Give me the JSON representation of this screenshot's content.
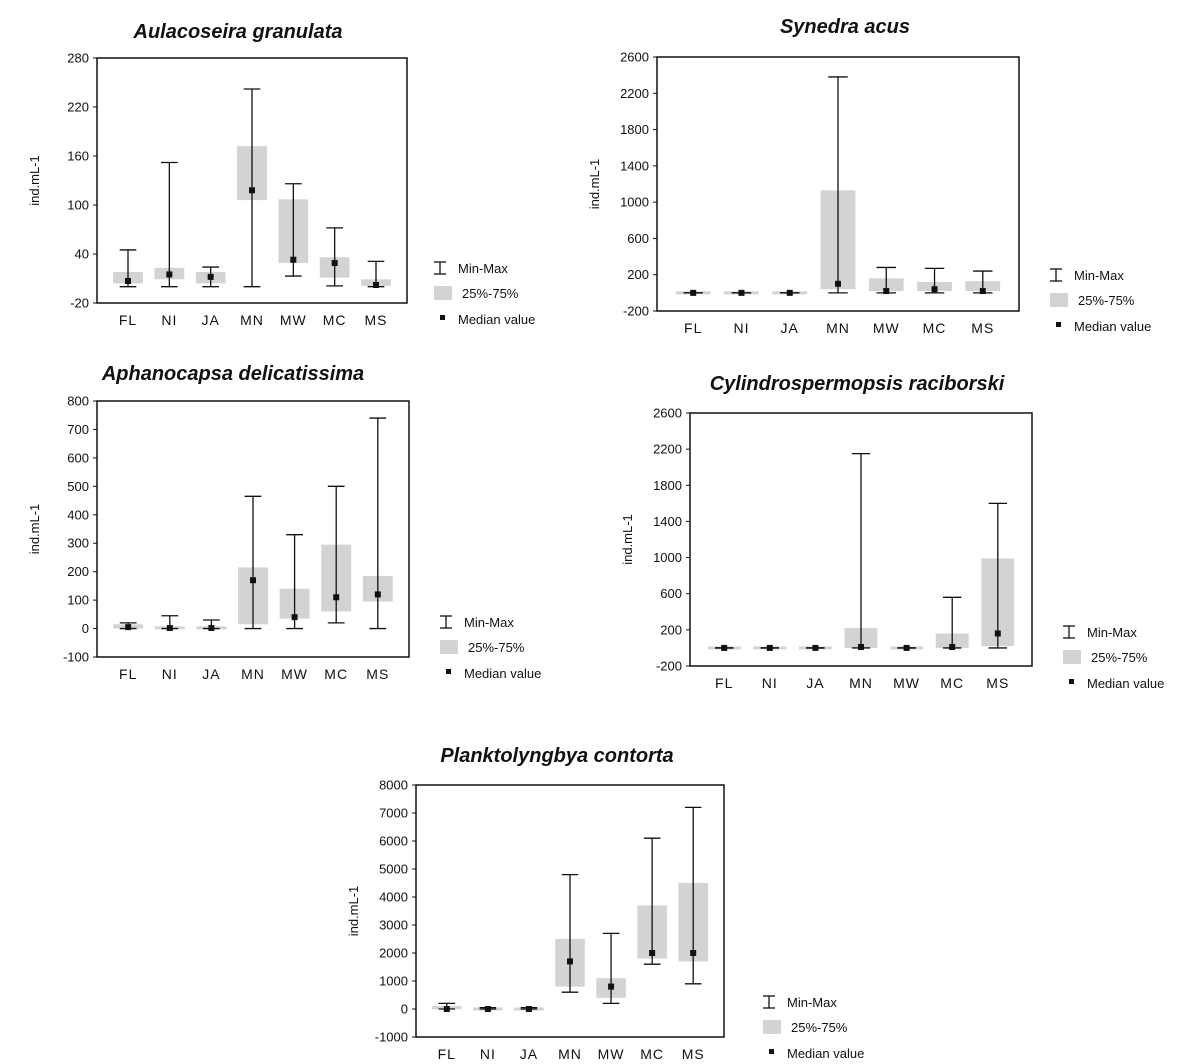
{
  "figure": {
    "legend": {
      "minmax": "Min-Max",
      "iqr": "25%-75%",
      "median": "Median value"
    },
    "colors": {
      "box": "#d3d3d3",
      "line": "#111111",
      "frame": "#111111"
    }
  },
  "chart_data": [
    {
      "type": "boxplot",
      "title": "Aulacoseira granulata",
      "ylabel": "ind.mL-1",
      "ylim": [
        -20,
        280
      ],
      "yticks": [
        -20,
        40,
        100,
        160,
        220,
        280
      ],
      "categories": [
        "FL",
        "NI",
        "JA",
        "MN",
        "MW",
        "MC",
        "MS"
      ],
      "boxes": [
        {
          "min": 0,
          "q1": 4,
          "median": 7,
          "q3": 18,
          "max": 45
        },
        {
          "min": 0,
          "q1": 9,
          "median": 15,
          "q3": 23,
          "max": 152
        },
        {
          "min": 0,
          "q1": 4,
          "median": 12,
          "q3": 18,
          "max": 24
        },
        {
          "min": 0,
          "q1": 106,
          "median": 118,
          "q3": 172,
          "max": 242
        },
        {
          "min": 13,
          "q1": 29,
          "median": 33,
          "q3": 107,
          "max": 126
        },
        {
          "min": 1,
          "q1": 11,
          "median": 29,
          "q3": 36,
          "max": 72
        },
        {
          "min": 0,
          "q1": 1,
          "median": 2,
          "q3": 9,
          "max": 31
        }
      ]
    },
    {
      "type": "boxplot",
      "title": "Synedra acus",
      "ylabel": "ind.mL-1",
      "ylim": [
        -200,
        2600
      ],
      "yticks": [
        -200,
        200,
        600,
        1000,
        1400,
        1800,
        2200,
        2600
      ],
      "categories": [
        "FL",
        "NI",
        "JA",
        "MN",
        "MW",
        "MC",
        "MS"
      ],
      "boxes": [
        {
          "min": 0,
          "q1": 0,
          "median": 0,
          "q3": 0,
          "max": 0
        },
        {
          "min": 0,
          "q1": 0,
          "median": 0,
          "q3": 0,
          "max": 0
        },
        {
          "min": 0,
          "q1": 0,
          "median": 0,
          "q3": 0,
          "max": 0
        },
        {
          "min": 0,
          "q1": 40,
          "median": 100,
          "q3": 1130,
          "max": 2380
        },
        {
          "min": 0,
          "q1": 20,
          "median": 20,
          "q3": 160,
          "max": 280
        },
        {
          "min": 0,
          "q1": 20,
          "median": 40,
          "q3": 120,
          "max": 270
        },
        {
          "min": 0,
          "q1": 20,
          "median": 20,
          "q3": 130,
          "max": 240
        }
      ]
    },
    {
      "type": "boxplot",
      "title": "Aphanocapsa delicatissima",
      "ylabel": "ind.mL-1",
      "ylim": [
        -100,
        800
      ],
      "yticks": [
        -100,
        0,
        100,
        200,
        300,
        400,
        500,
        600,
        700,
        800
      ],
      "categories": [
        "FL",
        "NI",
        "JA",
        "MN",
        "MW",
        "MC",
        "MS"
      ],
      "boxes": [
        {
          "min": 0,
          "q1": 0,
          "median": 5,
          "q3": 15,
          "max": 20
        },
        {
          "min": 0,
          "q1": 0,
          "median": 2,
          "q3": 5,
          "max": 45
        },
        {
          "min": 0,
          "q1": 0,
          "median": 2,
          "q3": 5,
          "max": 30
        },
        {
          "min": 0,
          "q1": 15,
          "median": 170,
          "q3": 215,
          "max": 465
        },
        {
          "min": 0,
          "q1": 35,
          "median": 40,
          "q3": 140,
          "max": 330
        },
        {
          "min": 20,
          "q1": 60,
          "median": 110,
          "q3": 295,
          "max": 500
        },
        {
          "min": 0,
          "q1": 95,
          "median": 120,
          "q3": 185,
          "max": 740
        }
      ]
    },
    {
      "type": "boxplot",
      "title": "Cylindrospermopsis raciborski",
      "ylabel": "ind.mL-1",
      "ylim": [
        -200,
        2600
      ],
      "yticks": [
        -200,
        200,
        600,
        1000,
        1400,
        1800,
        2200,
        2600
      ],
      "categories": [
        "FL",
        "NI",
        "JA",
        "MN",
        "MW",
        "MC",
        "MS"
      ],
      "boxes": [
        {
          "min": 0,
          "q1": 0,
          "median": 0,
          "q3": 0,
          "max": 0
        },
        {
          "min": 0,
          "q1": 0,
          "median": 0,
          "q3": 0,
          "max": 0
        },
        {
          "min": 0,
          "q1": 0,
          "median": 0,
          "q3": 0,
          "max": 0
        },
        {
          "min": 0,
          "q1": 0,
          "median": 10,
          "q3": 220,
          "max": 2150
        },
        {
          "min": 0,
          "q1": 0,
          "median": 0,
          "q3": 0,
          "max": 0
        },
        {
          "min": 0,
          "q1": 0,
          "median": 10,
          "q3": 160,
          "max": 560
        },
        {
          "min": 0,
          "q1": 20,
          "median": 160,
          "q3": 990,
          "max": 1600
        }
      ]
    },
    {
      "type": "boxplot",
      "title": "Planktolyngbya contorta",
      "ylabel": "ind.mL-1",
      "ylim": [
        -1000,
        8000
      ],
      "yticks": [
        -1000,
        0,
        1000,
        2000,
        3000,
        4000,
        5000,
        6000,
        7000,
        8000
      ],
      "categories": [
        "FL",
        "NI",
        "JA",
        "MN",
        "MW",
        "MC",
        "MS"
      ],
      "boxes": [
        {
          "min": 0,
          "q1": 0,
          "median": 0,
          "q3": 100,
          "max": 200
        },
        {
          "min": 0,
          "q1": 0,
          "median": 0,
          "q3": 0,
          "max": 50
        },
        {
          "min": 0,
          "q1": 0,
          "median": 0,
          "q3": 0,
          "max": 50
        },
        {
          "min": 600,
          "q1": 800,
          "median": 1700,
          "q3": 2500,
          "max": 4800
        },
        {
          "min": 200,
          "q1": 400,
          "median": 800,
          "q3": 1100,
          "max": 2700
        },
        {
          "min": 1600,
          "q1": 1800,
          "median": 2000,
          "q3": 3700,
          "max": 6100
        },
        {
          "min": 900,
          "q1": 1700,
          "median": 2000,
          "q3": 4500,
          "max": 7200
        }
      ]
    }
  ]
}
